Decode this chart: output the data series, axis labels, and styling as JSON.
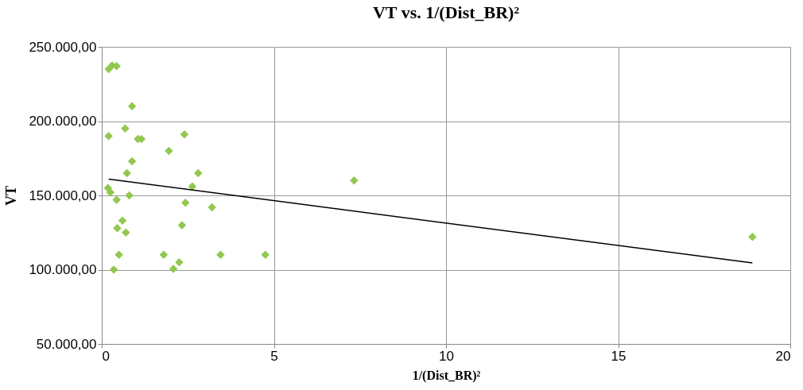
{
  "chart_data": {
    "type": "scatter",
    "title": "VT vs. 1/(Dist_BR)²",
    "xlabel": "1/(Dist_BR)²",
    "ylabel": "VT",
    "xlim": [
      0,
      20
    ],
    "xticks": [
      0,
      5,
      10,
      15,
      20
    ],
    "ylim": [
      50000,
      250000
    ],
    "yticks": [
      {
        "value": 50000,
        "label": "50.000,00"
      },
      {
        "value": 100000,
        "label": "100.000,00"
      },
      {
        "value": 150000,
        "label": "150.000,00"
      },
      {
        "value": 200000,
        "label": "200.000,00"
      },
      {
        "value": 250000,
        "label": "250.000,00"
      }
    ],
    "grid": true,
    "marker": "diamond",
    "series": [
      {
        "color": "#92c84f",
        "x": [
          0.2,
          0.3,
          0.43,
          0.88,
          0.2,
          0.68,
          1.05,
          1.15,
          1.95,
          2.4,
          0.88,
          0.73,
          2.8,
          2.63,
          0.18,
          0.25,
          0.43,
          0.8,
          2.43,
          3.2,
          0.6,
          0.45,
          0.7,
          2.33,
          0.5,
          1.8,
          3.45,
          4.75,
          0.35,
          2.08,
          2.25,
          7.33,
          18.9
        ],
        "values": [
          235000,
          237500,
          237000,
          210000,
          190000,
          195000,
          188000,
          188000,
          180000,
          191000,
          173000,
          165000,
          165000,
          156000,
          155000,
          152000,
          147000,
          150000,
          145000,
          142000,
          133000,
          128000,
          125000,
          130000,
          110000,
          110000,
          110000,
          110000,
          100000,
          100500,
          105000,
          160000,
          122000
        ]
      },
      {
        "type": "line",
        "marker": "none",
        "color": "#000000",
        "x": [
          0.2,
          18.9
        ],
        "values": [
          161000,
          104500
        ]
      }
    ]
  }
}
